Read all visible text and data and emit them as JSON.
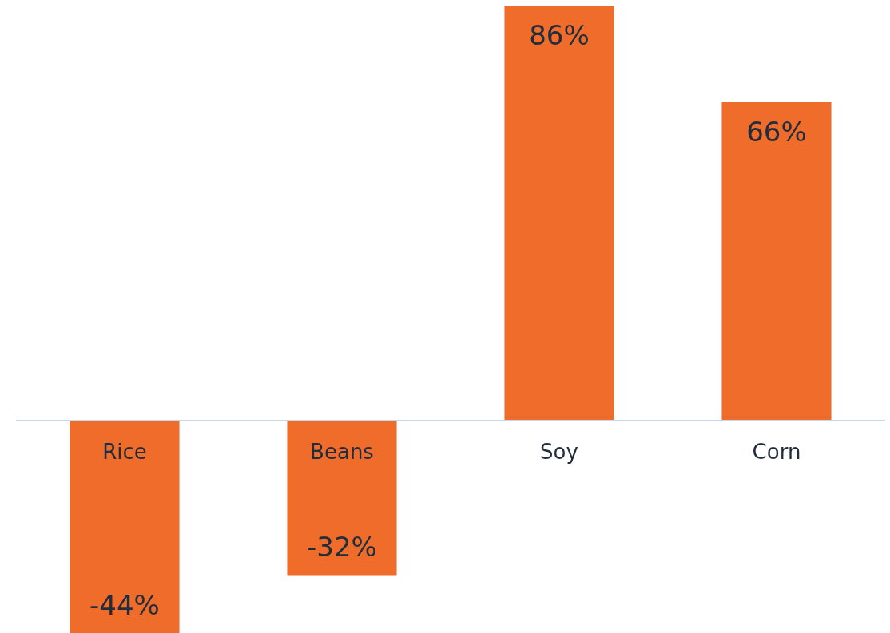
{
  "chart_data": {
    "type": "bar",
    "categories": [
      "Rice",
      "Beans",
      "Soy",
      "Corn"
    ],
    "values": [
      -44,
      -32,
      86,
      66
    ],
    "value_labels": [
      "-44%",
      "-32%",
      "86%",
      "66%"
    ],
    "color": "#ef6c2a",
    "ylim": [
      -44,
      86
    ],
    "tick_labels": "x",
    "grid": false,
    "legend": false
  }
}
